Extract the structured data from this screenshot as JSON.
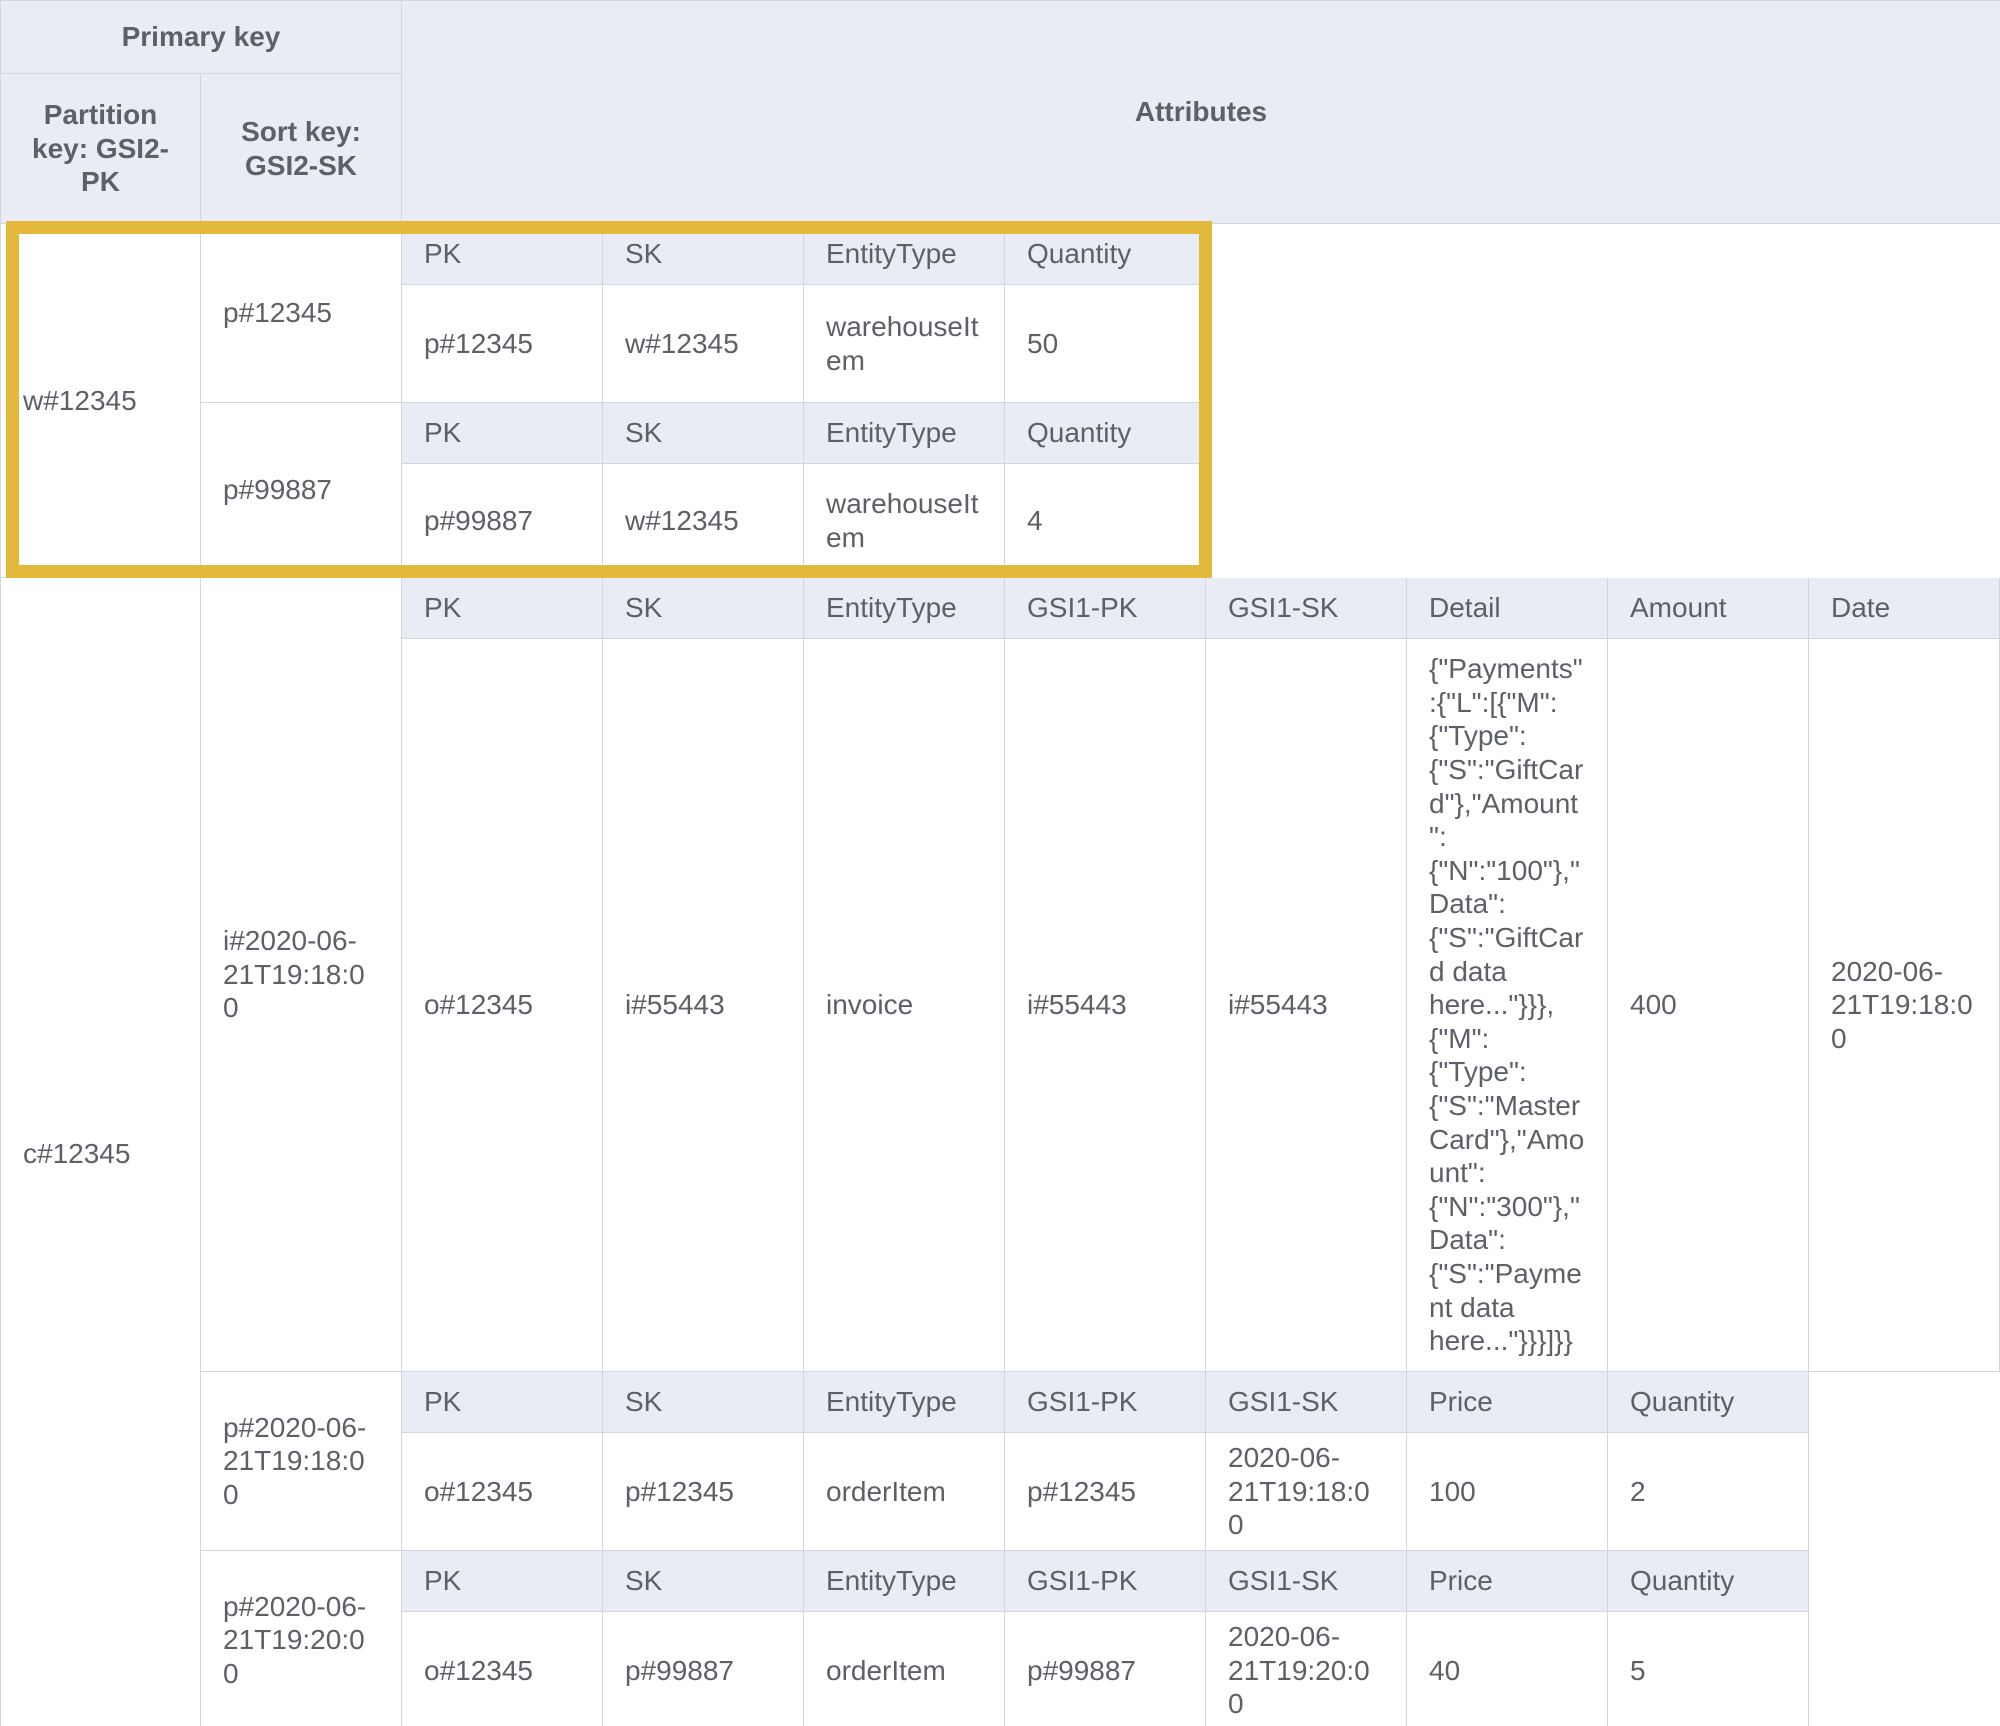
{
  "header": {
    "primary_key": "Primary key",
    "partition_key": "Partition key: GSI2-PK",
    "sort_key": "Sort key: GSI2-SK",
    "attributes": "Attributes"
  },
  "colors": {
    "header_bg": "#e9ecf4",
    "border": "#d2d6de",
    "text": "#5d6167",
    "highlight": "#e2b93c"
  },
  "groups": [
    {
      "partition": "w#12345",
      "highlighted": true,
      "items": [
        {
          "sort": "p#12345",
          "columns": [
            "PK",
            "SK",
            "EntityType",
            "Quantity"
          ],
          "values": [
            "p#12345",
            "w#12345",
            "warehouseItem",
            "50"
          ]
        },
        {
          "sort": "p#99887",
          "columns": [
            "PK",
            "SK",
            "EntityType",
            "Quantity"
          ],
          "values": [
            "p#99887",
            "w#12345",
            "warehouseItem",
            "4"
          ]
        }
      ]
    },
    {
      "partition": "c#12345",
      "highlighted": false,
      "items": [
        {
          "sort": "i#2020-06-21T19:18:00",
          "columns": [
            "PK",
            "SK",
            "EntityType",
            "GSI1-PK",
            "GSI1-SK",
            "Detail",
            "Amount",
            "Date"
          ],
          "values": [
            "o#12345",
            "i#55443",
            "invoice",
            "i#55443",
            "i#55443",
            "{\"Payments\":{\"L\":[{\"M\":{\"Type\":{\"S\":\"GiftCard\"},\"Amount\":{\"N\":\"100\"},\"Data\":{\"S\":\"GiftCard data here...\"}}},{\"M\":{\"Type\":{\"S\":\"MasterCard\"},\"Amount\":{\"N\":\"300\"},\"Data\":{\"S\":\"Payment data here...\"}}}]}}",
            "400",
            "2020-06-21T19:18:00"
          ]
        },
        {
          "sort": "p#2020-06-21T19:18:00",
          "columns": [
            "PK",
            "SK",
            "EntityType",
            "GSI1-PK",
            "GSI1-SK",
            "Price",
            "Quantity"
          ],
          "values": [
            "o#12345",
            "p#12345",
            "orderItem",
            "p#12345",
            "2020-06-21T19:18:00",
            "100",
            "2"
          ]
        },
        {
          "sort": "p#2020-06-21T19:20:00",
          "columns": [
            "PK",
            "SK",
            "EntityType",
            "GSI1-PK",
            "GSI1-SK",
            "Price",
            "Quantity"
          ],
          "values": [
            "o#12345",
            "p#99887",
            "orderItem",
            "p#99887",
            "2020-06-21T19:20:00",
            "40",
            "5"
          ]
        }
      ]
    }
  ]
}
